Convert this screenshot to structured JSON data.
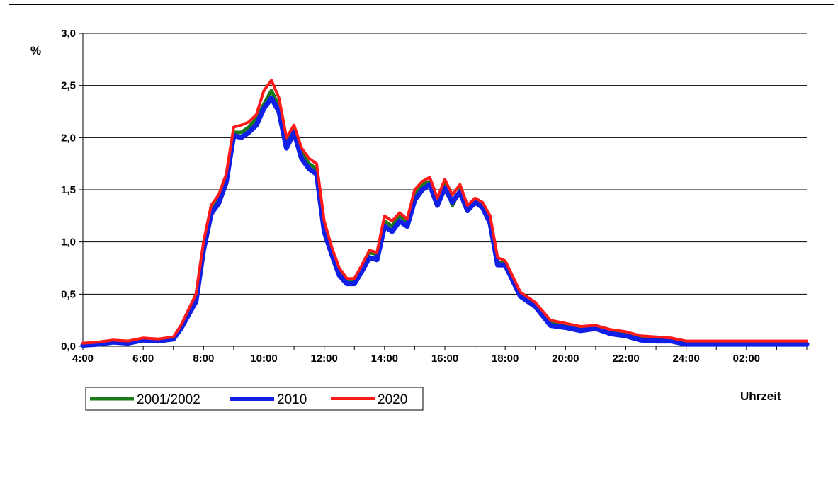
{
  "chart_data": {
    "type": "line",
    "title": "",
    "ylabel": "%",
    "xlabel": "Uhrzeit",
    "ylim": [
      0,
      3
    ],
    "y_ticks": [
      "0,0",
      "0,5",
      "1,0",
      "1,5",
      "2,0",
      "2,5",
      "3,0"
    ],
    "x_ticks": [
      "4:00",
      "6:00",
      "8:00",
      "10:00",
      "12:00",
      "14:00",
      "16:00",
      "18:00",
      "20:00",
      "22:00",
      "24:00",
      "02:00"
    ],
    "xlim_hours": [
      4,
      28
    ],
    "grid": "horizontal",
    "legend_position": "bottom-left",
    "x_hours": [
      4,
      4.5,
      5,
      5.5,
      6,
      6.5,
      7,
      7.25,
      7.5,
      7.75,
      8,
      8.25,
      8.5,
      8.75,
      9,
      9.25,
      9.5,
      9.75,
      10,
      10.25,
      10.5,
      10.75,
      11,
      11.25,
      11.5,
      11.75,
      12,
      12.25,
      12.5,
      12.75,
      13,
      13.25,
      13.5,
      13.75,
      14,
      14.25,
      14.5,
      14.75,
      15,
      15.25,
      15.5,
      15.75,
      16,
      16.25,
      16.5,
      16.75,
      17,
      17.25,
      17.5,
      17.75,
      18,
      18.5,
      19,
      19.5,
      20,
      20.5,
      21,
      21.5,
      22,
      22.5,
      23,
      23.5,
      24,
      25,
      26,
      27,
      28
    ],
    "series": [
      {
        "name": "2001/2002",
        "color": "#1a7a1a",
        "width": 5,
        "values": [
          0.02,
          0.03,
          0.05,
          0.04,
          0.07,
          0.06,
          0.08,
          0.18,
          0.32,
          0.45,
          0.95,
          1.3,
          1.4,
          1.6,
          2.05,
          2.05,
          2.1,
          2.18,
          2.32,
          2.45,
          2.3,
          1.95,
          2.1,
          1.85,
          1.75,
          1.7,
          1.15,
          0.9,
          0.7,
          0.62,
          0.62,
          0.75,
          0.9,
          0.88,
          1.2,
          1.15,
          1.25,
          1.2,
          1.45,
          1.55,
          1.58,
          1.4,
          1.55,
          1.35,
          1.5,
          1.3,
          1.4,
          1.35,
          1.2,
          0.8,
          0.8,
          0.5,
          0.4,
          0.22,
          0.2,
          0.16,
          0.18,
          0.14,
          0.12,
          0.08,
          0.07,
          0.06,
          0.03,
          0.03,
          0.03,
          0.03,
          0.03
        ]
      },
      {
        "name": "2010",
        "color": "#0f1fe6",
        "width": 7,
        "values": [
          0.01,
          0.02,
          0.04,
          0.03,
          0.06,
          0.05,
          0.07,
          0.17,
          0.3,
          0.43,
          0.92,
          1.27,
          1.37,
          1.57,
          2.02,
          2.0,
          2.05,
          2.12,
          2.28,
          2.38,
          2.25,
          1.9,
          2.05,
          1.8,
          1.7,
          1.65,
          1.1,
          0.88,
          0.68,
          0.6,
          0.6,
          0.72,
          0.85,
          0.83,
          1.15,
          1.1,
          1.2,
          1.15,
          1.4,
          1.5,
          1.55,
          1.35,
          1.52,
          1.38,
          1.48,
          1.3,
          1.38,
          1.33,
          1.18,
          0.78,
          0.78,
          0.48,
          0.38,
          0.2,
          0.18,
          0.15,
          0.17,
          0.12,
          0.1,
          0.06,
          0.05,
          0.05,
          0.02,
          0.02,
          0.02,
          0.02,
          0.02
        ]
      },
      {
        "name": "2020",
        "color": "#ff1a1a",
        "width": 4,
        "values": [
          0.03,
          0.04,
          0.06,
          0.05,
          0.08,
          0.07,
          0.09,
          0.2,
          0.35,
          0.5,
          1.0,
          1.35,
          1.45,
          1.65,
          2.1,
          2.12,
          2.15,
          2.22,
          2.45,
          2.55,
          2.38,
          2.0,
          2.12,
          1.9,
          1.8,
          1.75,
          1.2,
          0.95,
          0.75,
          0.65,
          0.65,
          0.78,
          0.92,
          0.9,
          1.25,
          1.2,
          1.28,
          1.22,
          1.5,
          1.58,
          1.62,
          1.42,
          1.6,
          1.45,
          1.55,
          1.35,
          1.42,
          1.38,
          1.25,
          0.85,
          0.82,
          0.52,
          0.42,
          0.25,
          0.22,
          0.19,
          0.2,
          0.16,
          0.14,
          0.1,
          0.09,
          0.08,
          0.05,
          0.05,
          0.05,
          0.05,
          0.05
        ]
      }
    ]
  }
}
